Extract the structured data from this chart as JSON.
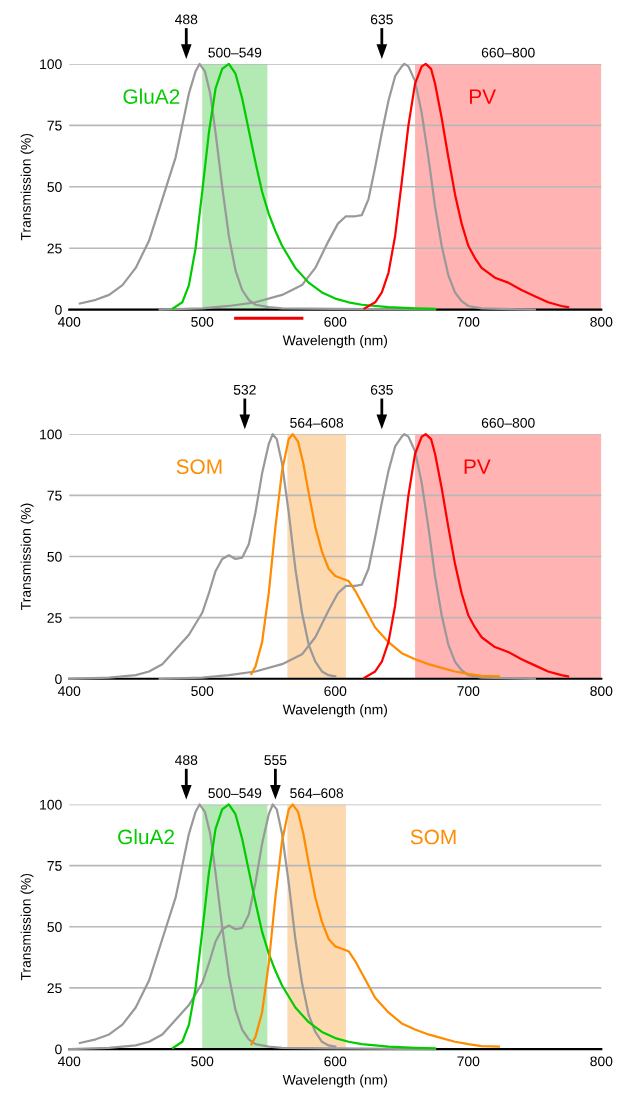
{
  "chart_data": [
    {
      "type": "line",
      "xlabel": "Wavelength (nm)",
      "ylabel": "Transmission (%)",
      "xlim": [
        400,
        800
      ],
      "ylim": [
        0,
        100
      ],
      "xticks": [
        400,
        500,
        600,
        700,
        800
      ],
      "yticks": [
        0,
        25,
        50,
        75,
        100
      ],
      "grid": "y",
      "series": [
        {
          "color": "#999999",
          "x": [
            408,
            420,
            430,
            440,
            450,
            460,
            470,
            480,
            485,
            490,
            495,
            498,
            502,
            506,
            510,
            515,
            520,
            525,
            530,
            535,
            540,
            550,
            560,
            600,
            675
          ],
          "values": [
            2.5,
            4,
            6,
            10,
            17,
            28,
            45,
            62,
            75,
            88,
            97,
            100,
            97,
            88,
            72,
            50,
            30,
            16,
            8,
            4,
            2,
            1,
            0.5,
            0.3,
            0
          ]
        },
        {
          "color": "#999999",
          "x": [
            468,
            500,
            520,
            540,
            560,
            575,
            585,
            595,
            602,
            608,
            615,
            620,
            625,
            630,
            635,
            640,
            645,
            650,
            652,
            655,
            660,
            665,
            670,
            675,
            680,
            685,
            690,
            695,
            700,
            710,
            750
          ],
          "values": [
            0,
            0.5,
            1.5,
            3,
            6,
            10,
            17,
            28,
            35,
            38,
            38,
            38.5,
            45,
            58,
            72,
            85,
            95,
            99,
            100,
            99,
            93,
            80,
            62,
            42,
            26,
            14,
            7,
            3.5,
            1.5,
            0.5,
            0
          ]
        },
        {
          "name": "GluA2",
          "color": "#00cc00",
          "x": [
            478,
            485,
            490,
            495,
            500,
            505,
            510,
            515,
            520,
            525,
            530,
            535,
            540,
            545,
            550,
            555,
            560,
            570,
            580,
            590,
            600,
            610,
            620,
            640,
            660,
            675
          ],
          "values": [
            0.5,
            3,
            10,
            25,
            48,
            72,
            90,
            98,
            100,
            96,
            86,
            73,
            60,
            48,
            39,
            32,
            26,
            17,
            11,
            7,
            4.5,
            3,
            2,
            1,
            0.5,
            0.3
          ]
        },
        {
          "name": "PV",
          "color": "#ff0000",
          "x": [
            622,
            630,
            635,
            640,
            645,
            650,
            655,
            660,
            665,
            668,
            672,
            675,
            680,
            685,
            690,
            695,
            700,
            705,
            710,
            720,
            730,
            740,
            750,
            760,
            770,
            775
          ],
          "values": [
            0.5,
            3,
            7,
            15,
            30,
            52,
            75,
            92,
            99,
            100,
            98,
            92,
            78,
            62,
            47,
            35,
            26,
            21,
            17,
            13,
            11,
            8,
            5.5,
            3,
            1.5,
            1
          ]
        }
      ],
      "bands": [
        {
          "axis": "x",
          "from": 500,
          "to": 549,
          "label": "500–549",
          "color": "#b3e9b3"
        },
        {
          "axis": "x",
          "from": 660,
          "to": 800,
          "label": "660–800",
          "color": "#ffb3b3"
        }
      ],
      "annotations": [
        {
          "text": "488",
          "x": 488
        },
        {
          "text": "635",
          "x": 635
        }
      ]
    },
    {
      "type": "line",
      "xlabel": "Wavelength (nm)",
      "ylabel": "Transmission (%)",
      "xlim": [
        400,
        800
      ],
      "ylim": [
        0,
        100
      ],
      "xticks": [
        400,
        500,
        600,
        700,
        800
      ],
      "yticks": [
        0,
        25,
        50,
        75,
        100
      ],
      "grid": "y",
      "series": [
        {
          "color": "#999999",
          "x": [
            400,
            430,
            450,
            460,
            470,
            480,
            490,
            500,
            505,
            510,
            515,
            520,
            525,
            530,
            535,
            540,
            545,
            550,
            553,
            556,
            560,
            565,
            570,
            575,
            580,
            585,
            590,
            595,
            600
          ],
          "values": [
            0,
            0.5,
            1.5,
            3,
            6,
            12,
            18,
            27,
            35,
            44,
            49,
            50.5,
            49,
            49.5,
            55,
            68,
            84,
            96,
            100,
            98,
            88,
            68,
            45,
            27,
            14,
            7,
            3,
            1.5,
            1
          ]
        },
        {
          "color": "#999999",
          "x": [
            468,
            500,
            520,
            540,
            560,
            575,
            585,
            595,
            602,
            608,
            615,
            620,
            625,
            630,
            635,
            640,
            645,
            650,
            652,
            655,
            660,
            665,
            670,
            675,
            680,
            685,
            690,
            695,
            700,
            710,
            750
          ],
          "values": [
            0,
            0.5,
            1.5,
            3,
            6,
            10,
            17,
            28,
            35,
            38,
            38,
            38.5,
            45,
            58,
            72,
            85,
            95,
            99,
            100,
            99,
            93,
            80,
            62,
            42,
            26,
            14,
            7,
            3.5,
            1.5,
            0.5,
            0
          ]
        },
        {
          "name": "SOM",
          "color": "#ff8c00",
          "x": [
            537,
            540,
            545,
            550,
            555,
            560,
            565,
            568,
            572,
            576,
            580,
            585,
            590,
            595,
            600,
            605,
            610,
            615,
            620,
            625,
            630,
            640,
            650,
            660,
            670,
            680,
            690,
            700,
            710,
            723
          ],
          "values": [
            2,
            5,
            15,
            35,
            62,
            85,
            98,
            100,
            97,
            88,
            76,
            62,
            52,
            45,
            42,
            41,
            40,
            36,
            31,
            26,
            21,
            15,
            10.5,
            8,
            6,
            4.5,
            3,
            2,
            1.2,
            1
          ]
        },
        {
          "name": "PV",
          "color": "#ff0000",
          "x": [
            622,
            630,
            635,
            640,
            645,
            650,
            655,
            660,
            665,
            668,
            672,
            675,
            680,
            685,
            690,
            695,
            700,
            705,
            710,
            720,
            730,
            740,
            750,
            760,
            770,
            775
          ],
          "values": [
            0.5,
            3,
            7,
            15,
            30,
            52,
            75,
            92,
            99,
            100,
            98,
            92,
            78,
            62,
            47,
            35,
            26,
            21,
            17,
            13,
            11,
            8,
            5.5,
            3,
            1.5,
            1
          ]
        }
      ],
      "bands": [
        {
          "axis": "x",
          "from": 564,
          "to": 608,
          "label": "564–608",
          "color": "#fdd9b0"
        },
        {
          "axis": "x",
          "from": 660,
          "to": 800,
          "label": "660–800",
          "color": "#ffb3b3"
        }
      ],
      "annotations": [
        {
          "text": "532",
          "x": 532
        },
        {
          "text": "635",
          "x": 635
        }
      ]
    },
    {
      "type": "line",
      "xlabel": "Wavelength (nm)",
      "ylabel": "Transmission (%)",
      "xlim": [
        400,
        800
      ],
      "ylim": [
        0,
        100
      ],
      "xticks": [
        400,
        500,
        600,
        700,
        800
      ],
      "yticks": [
        0,
        25,
        50,
        75,
        100
      ],
      "grid": "y",
      "series": [
        {
          "color": "#999999",
          "x": [
            408,
            420,
            430,
            440,
            450,
            460,
            470,
            480,
            485,
            490,
            495,
            498,
            502,
            506,
            510,
            515,
            520,
            525,
            530,
            535,
            540,
            550,
            560,
            600,
            675
          ],
          "values": [
            2.5,
            4,
            6,
            10,
            17,
            28,
            45,
            62,
            75,
            88,
            97,
            100,
            97,
            88,
            72,
            50,
            30,
            16,
            8,
            4,
            2,
            1,
            0.5,
            0.3,
            0
          ]
        },
        {
          "color": "#999999",
          "x": [
            400,
            430,
            450,
            460,
            470,
            480,
            490,
            500,
            505,
            510,
            515,
            520,
            525,
            530,
            535,
            540,
            545,
            550,
            553,
            556,
            560,
            565,
            570,
            575,
            580,
            585,
            590,
            595,
            600
          ],
          "values": [
            0,
            0.5,
            1.5,
            3,
            6,
            12,
            18,
            27,
            35,
            44,
            49,
            50.5,
            49,
            49.5,
            55,
            68,
            84,
            96,
            100,
            98,
            88,
            68,
            45,
            27,
            14,
            7,
            3,
            1.5,
            1
          ]
        },
        {
          "name": "GluA2",
          "color": "#00cc00",
          "x": [
            478,
            485,
            490,
            495,
            500,
            505,
            510,
            515,
            520,
            525,
            530,
            535,
            540,
            545,
            550,
            555,
            560,
            570,
            580,
            590,
            600,
            610,
            620,
            640,
            660,
            675
          ],
          "values": [
            0.5,
            3,
            10,
            25,
            48,
            72,
            90,
            98,
            100,
            96,
            86,
            73,
            60,
            48,
            39,
            32,
            26,
            17,
            11,
            7,
            4.5,
            3,
            2,
            1,
            0.5,
            0.3
          ]
        },
        {
          "name": "SOM",
          "color": "#ff8c00",
          "x": [
            537,
            540,
            545,
            550,
            555,
            560,
            565,
            568,
            572,
            576,
            580,
            585,
            590,
            595,
            600,
            605,
            610,
            615,
            620,
            625,
            630,
            640,
            650,
            660,
            670,
            680,
            690,
            700,
            710,
            723
          ],
          "values": [
            2,
            5,
            15,
            35,
            62,
            85,
            98,
            100,
            97,
            88,
            76,
            62,
            52,
            45,
            42,
            41,
            40,
            36,
            31,
            26,
            21,
            15,
            10.5,
            8,
            6,
            4.5,
            3,
            2,
            1.2,
            1
          ]
        }
      ],
      "bands": [
        {
          "axis": "x",
          "from": 500,
          "to": 549,
          "label": "500–549",
          "color": "#b3e9b3"
        },
        {
          "axis": "x",
          "from": 564,
          "to": 608,
          "label": "564–608",
          "color": "#fdd9b0"
        }
      ],
      "annotations": [
        {
          "text": "488",
          "x": 488
        },
        {
          "text": "555",
          "x": 555
        }
      ]
    }
  ]
}
